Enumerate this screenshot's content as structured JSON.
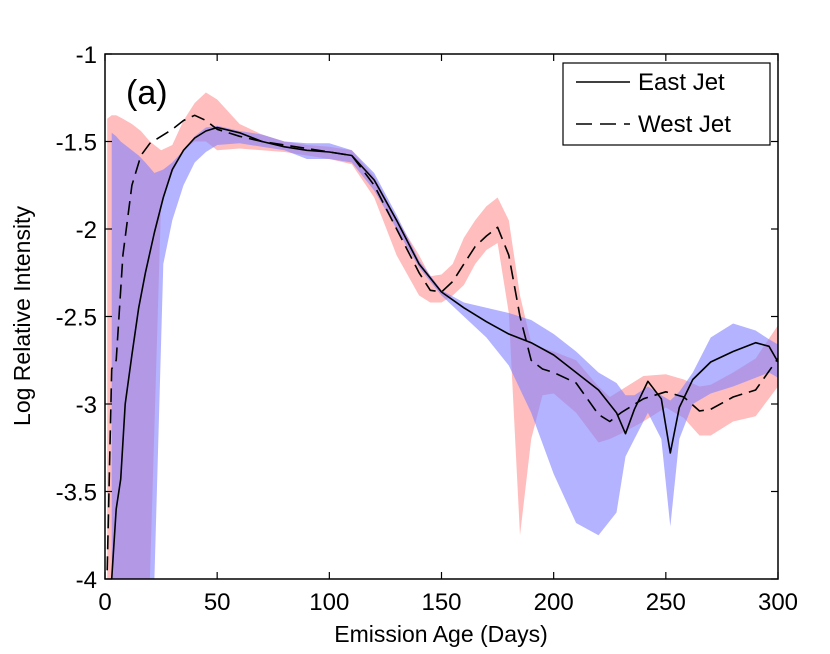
{
  "chart_data": {
    "type": "line",
    "panel_label": "(a)",
    "xlabel": "Emission Age (Days)",
    "ylabel": "Log Relative Intensity",
    "xlim": [
      0,
      300
    ],
    "ylim": [
      -4,
      -1
    ],
    "xticks": [
      0,
      50,
      100,
      150,
      200,
      250,
      300
    ],
    "yticks": [
      -4,
      -3.5,
      -3,
      -2.5,
      -2,
      -1.5,
      -1
    ],
    "xtick_labels": [
      "0",
      "50",
      "100",
      "150",
      "200",
      "250",
      "300"
    ],
    "ytick_labels": [
      "-4",
      "-3.5",
      "-3",
      "-2.5",
      "-2",
      "-1.5",
      "-1"
    ],
    "legend_position": "top-right",
    "series": [
      {
        "name": "East Jet",
        "style": "solid",
        "color": "#000000",
        "band_color": "#8080ff",
        "x": [
          3,
          5,
          7,
          9,
          12,
          15,
          18,
          22,
          26,
          30,
          35,
          40,
          45,
          50,
          60,
          70,
          80,
          90,
          100,
          110,
          120,
          130,
          140,
          150,
          160,
          170,
          180,
          190,
          200,
          210,
          220,
          228,
          232,
          236,
          242,
          248,
          252,
          256,
          262,
          270,
          280,
          290,
          296,
          300
        ],
        "y": [
          -4,
          -3.6,
          -3.43,
          -3.0,
          -2.72,
          -2.45,
          -2.25,
          -2.02,
          -1.82,
          -1.66,
          -1.55,
          -1.48,
          -1.44,
          -1.42,
          -1.45,
          -1.5,
          -1.53,
          -1.55,
          -1.56,
          -1.58,
          -1.72,
          -1.95,
          -2.2,
          -2.36,
          -2.45,
          -2.53,
          -2.6,
          -2.65,
          -2.72,
          -2.82,
          -2.92,
          -3.05,
          -3.17,
          -3.03,
          -2.87,
          -2.97,
          -3.28,
          -3.02,
          -2.86,
          -2.76,
          -2.7,
          -2.65,
          -2.67,
          -2.76
        ],
        "band_upper": [
          -1.45,
          -1.47,
          -1.5,
          -1.52,
          -1.55,
          -1.58,
          -1.62,
          -1.68,
          -1.66,
          -1.62,
          -1.55,
          -1.47,
          -1.42,
          -1.41,
          -1.44,
          -1.46,
          -1.5,
          -1.51,
          -1.51,
          -1.55,
          -1.68,
          -1.92,
          -2.18,
          -2.35,
          -2.42,
          -2.45,
          -2.48,
          -2.52,
          -2.6,
          -2.7,
          -2.82,
          -2.88,
          -2.95,
          -2.95,
          -2.9,
          -2.95,
          -2.98,
          -2.93,
          -2.82,
          -2.62,
          -2.54,
          -2.58,
          -2.63,
          -2.66
        ],
        "band_lower": [
          -4,
          -4,
          -4,
          -4,
          -4,
          -4,
          -4,
          -4,
          -2.2,
          -1.95,
          -1.75,
          -1.62,
          -1.56,
          -1.52,
          -1.51,
          -1.53,
          -1.55,
          -1.6,
          -1.6,
          -1.62,
          -1.78,
          -2.0,
          -2.22,
          -2.38,
          -2.5,
          -2.62,
          -2.78,
          -3.05,
          -3.4,
          -3.68,
          -3.75,
          -3.62,
          -3.3,
          -3.2,
          -3.05,
          -3.2,
          -3.7,
          -3.2,
          -3.0,
          -2.94,
          -2.9,
          -2.85,
          -2.82,
          -2.85
        ]
      },
      {
        "name": "West Jet",
        "style": "dashed",
        "color": "#000000",
        "band_color": "#ff9999",
        "x": [
          1,
          3,
          5,
          8,
          12,
          16,
          20,
          25,
          30,
          35,
          40,
          45,
          50,
          60,
          70,
          80,
          90,
          100,
          110,
          120,
          130,
          140,
          145,
          150,
          155,
          160,
          165,
          170,
          175,
          180,
          185,
          190,
          195,
          200,
          210,
          220,
          225,
          230,
          240,
          250,
          258,
          265,
          270,
          280,
          290,
          300
        ],
        "y": [
          -3.95,
          -2.8,
          -2.75,
          -2.15,
          -1.75,
          -1.58,
          -1.51,
          -1.47,
          -1.43,
          -1.38,
          -1.35,
          -1.38,
          -1.43,
          -1.47,
          -1.5,
          -1.52,
          -1.54,
          -1.56,
          -1.58,
          -1.75,
          -2.0,
          -2.25,
          -2.35,
          -2.36,
          -2.3,
          -2.2,
          -2.1,
          -2.04,
          -1.99,
          -2.15,
          -2.5,
          -2.75,
          -2.8,
          -2.82,
          -2.88,
          -3.06,
          -3.1,
          -3.05,
          -2.97,
          -2.93,
          -2.96,
          -3.04,
          -3.03,
          -2.96,
          -2.92,
          -2.74
        ],
        "band_upper": [
          -1.37,
          -1.35,
          -1.35,
          -1.37,
          -1.4,
          -1.44,
          -1.5,
          -1.55,
          -1.52,
          -1.38,
          -1.28,
          -1.22,
          -1.26,
          -1.4,
          -1.46,
          -1.5,
          -1.52,
          -1.53,
          -1.55,
          -1.7,
          -1.94,
          -2.15,
          -2.27,
          -2.26,
          -2.2,
          -2.05,
          -1.95,
          -1.87,
          -1.82,
          -1.95,
          -2.38,
          -2.65,
          -2.68,
          -2.7,
          -2.75,
          -2.9,
          -2.96,
          -2.92,
          -2.84,
          -2.83,
          -2.86,
          -2.9,
          -2.89,
          -2.82,
          -2.74,
          -2.55
        ],
        "band_lower": [
          -4,
          -4,
          -4,
          -4,
          -4,
          -4,
          -4,
          -1.85,
          -1.68,
          -1.55,
          -1.5,
          -1.5,
          -1.55,
          -1.54,
          -1.55,
          -1.56,
          -1.58,
          -1.6,
          -1.63,
          -1.82,
          -2.15,
          -2.38,
          -2.42,
          -2.42,
          -2.38,
          -2.32,
          -2.2,
          -2.12,
          -2.08,
          -2.48,
          -3.75,
          -3.2,
          -2.95,
          -2.94,
          -3.05,
          -3.22,
          -3.2,
          -3.17,
          -3.1,
          -3.02,
          -3.08,
          -3.18,
          -3.18,
          -3.1,
          -3.07,
          -2.9
        ]
      }
    ]
  }
}
